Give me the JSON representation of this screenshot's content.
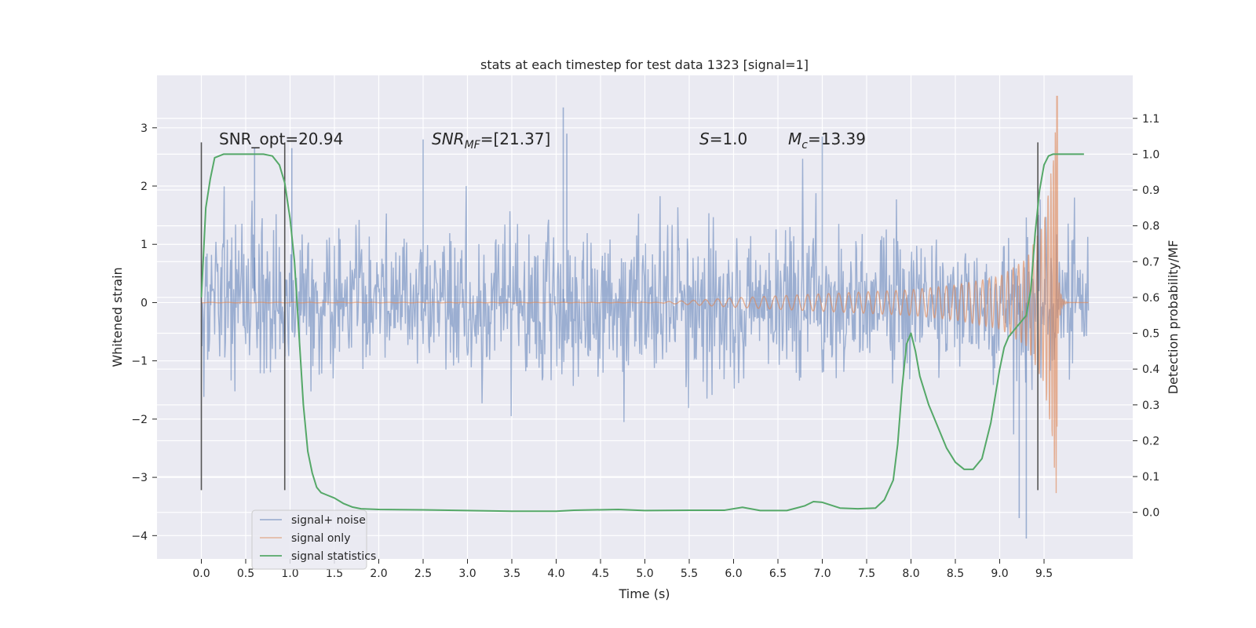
{
  "chart_data": {
    "type": "line",
    "title": "stats at each timestep for test data 1323 [signal=1]",
    "xlabel": "Time (s)",
    "ylabel": "Whitened strain",
    "ylabel_right": "Detection probability/MF",
    "xlim": [
      -0.5,
      10.5
    ],
    "ylim": [
      -4.4,
      3.9
    ],
    "ylim_right": [
      -0.13,
      1.22
    ],
    "x_ticks": [
      "0.0",
      "0.5",
      "1.0",
      "1.5",
      "2.0",
      "2.5",
      "3.0",
      "3.5",
      "4.0",
      "4.5",
      "5.0",
      "5.5",
      "6.0",
      "6.5",
      "7.0",
      "7.5",
      "8.0",
      "8.5",
      "9.0",
      "9.5"
    ],
    "y_ticks": [
      "3",
      "2",
      "1",
      "0",
      "−1",
      "−2",
      "−3",
      "−4"
    ],
    "y_right_ticks": [
      "1.1",
      "1.0",
      "0.9",
      "0.8",
      "0.7",
      "0.6",
      "0.5",
      "0.4",
      "0.3",
      "0.2",
      "0.1",
      "0.0"
    ],
    "grid": true,
    "legend_position": "lower-left",
    "annotations": {
      "snr_opt": "SNR_opt=20.94",
      "snr_mf_prefix": "SNR",
      "snr_mf_sub": "MF",
      "snr_mf_suffix": "=[21.37]",
      "s_sym": "S",
      "s_val": "=1.0",
      "mc_sym": "M",
      "mc_sub": "c",
      "mc_val": "=13.39"
    },
    "vertical_lines_x": [
      0.0,
      0.94,
      9.43
    ],
    "series": [
      {
        "name": "signal+ noise",
        "color": "#4c72b0",
        "x_range": [
          0.0,
          10.0
        ],
        "envelope_typical": [
          -1.3,
          1.3
        ],
        "extremes": [
          [
            4.08,
            3.35
          ],
          [
            9.3,
            -4.05
          ],
          [
            9.22,
            -3.7
          ],
          [
            7.0,
            2.85
          ],
          [
            0.6,
            2.65
          ],
          [
            1.02,
            2.65
          ],
          [
            4.12,
            2.9
          ],
          [
            2.5,
            2.8
          ]
        ]
      },
      {
        "name": "signal only",
        "color": "#dd8452",
        "chirp_start": 5.2,
        "merger_time": 9.65,
        "peak": 3.55,
        "amplitude_points": [
          [
            5.2,
            0.01
          ],
          [
            6.0,
            0.08
          ],
          [
            7.0,
            0.15
          ],
          [
            8.0,
            0.22
          ],
          [
            8.5,
            0.3
          ],
          [
            9.0,
            0.45
          ],
          [
            9.3,
            0.75
          ],
          [
            9.5,
            1.4
          ],
          [
            9.6,
            2.5
          ],
          [
            9.65,
            3.55
          ]
        ]
      },
      {
        "name": "signal statistics",
        "color": "#55a868",
        "axis": "right",
        "points": [
          [
            0.0,
            0.6
          ],
          [
            0.05,
            0.85
          ],
          [
            0.1,
            0.93
          ],
          [
            0.15,
            0.99
          ],
          [
            0.25,
            1.0
          ],
          [
            0.5,
            1.0
          ],
          [
            0.7,
            1.0
          ],
          [
            0.8,
            0.995
          ],
          [
            0.88,
            0.97
          ],
          [
            0.94,
            0.92
          ],
          [
            1.0,
            0.82
          ],
          [
            1.05,
            0.7
          ],
          [
            1.1,
            0.5
          ],
          [
            1.15,
            0.3
          ],
          [
            1.2,
            0.17
          ],
          [
            1.25,
            0.11
          ],
          [
            1.3,
            0.07
          ],
          [
            1.35,
            0.055
          ],
          [
            1.4,
            0.05
          ],
          [
            1.5,
            0.04
          ],
          [
            1.6,
            0.025
          ],
          [
            1.7,
            0.015
          ],
          [
            1.8,
            0.01
          ],
          [
            2.0,
            0.008
          ],
          [
            2.5,
            0.007
          ],
          [
            3.0,
            0.005
          ],
          [
            3.5,
            0.003
          ],
          [
            4.0,
            0.003
          ],
          [
            4.2,
            0.006
          ],
          [
            4.7,
            0.008
          ],
          [
            5.0,
            0.005
          ],
          [
            5.5,
            0.006
          ],
          [
            5.9,
            0.006
          ],
          [
            6.1,
            0.014
          ],
          [
            6.3,
            0.005
          ],
          [
            6.6,
            0.005
          ],
          [
            6.8,
            0.018
          ],
          [
            6.9,
            0.03
          ],
          [
            7.0,
            0.028
          ],
          [
            7.2,
            0.012
          ],
          [
            7.4,
            0.01
          ],
          [
            7.6,
            0.012
          ],
          [
            7.7,
            0.035
          ],
          [
            7.8,
            0.09
          ],
          [
            7.85,
            0.19
          ],
          [
            7.9,
            0.35
          ],
          [
            7.95,
            0.47
          ],
          [
            8.0,
            0.5
          ],
          [
            8.05,
            0.45
          ],
          [
            8.1,
            0.38
          ],
          [
            8.2,
            0.3
          ],
          [
            8.3,
            0.24
          ],
          [
            8.4,
            0.18
          ],
          [
            8.5,
            0.14
          ],
          [
            8.6,
            0.12
          ],
          [
            8.7,
            0.12
          ],
          [
            8.8,
            0.15
          ],
          [
            8.9,
            0.25
          ],
          [
            9.0,
            0.4
          ],
          [
            9.05,
            0.46
          ],
          [
            9.1,
            0.49
          ],
          [
            9.2,
            0.52
          ],
          [
            9.3,
            0.55
          ],
          [
            9.35,
            0.62
          ],
          [
            9.4,
            0.78
          ],
          [
            9.45,
            0.9
          ],
          [
            9.5,
            0.97
          ],
          [
            9.55,
            0.995
          ],
          [
            9.6,
            1.0
          ],
          [
            9.8,
            1.0
          ],
          [
            9.95,
            1.0
          ]
        ]
      }
    ]
  }
}
